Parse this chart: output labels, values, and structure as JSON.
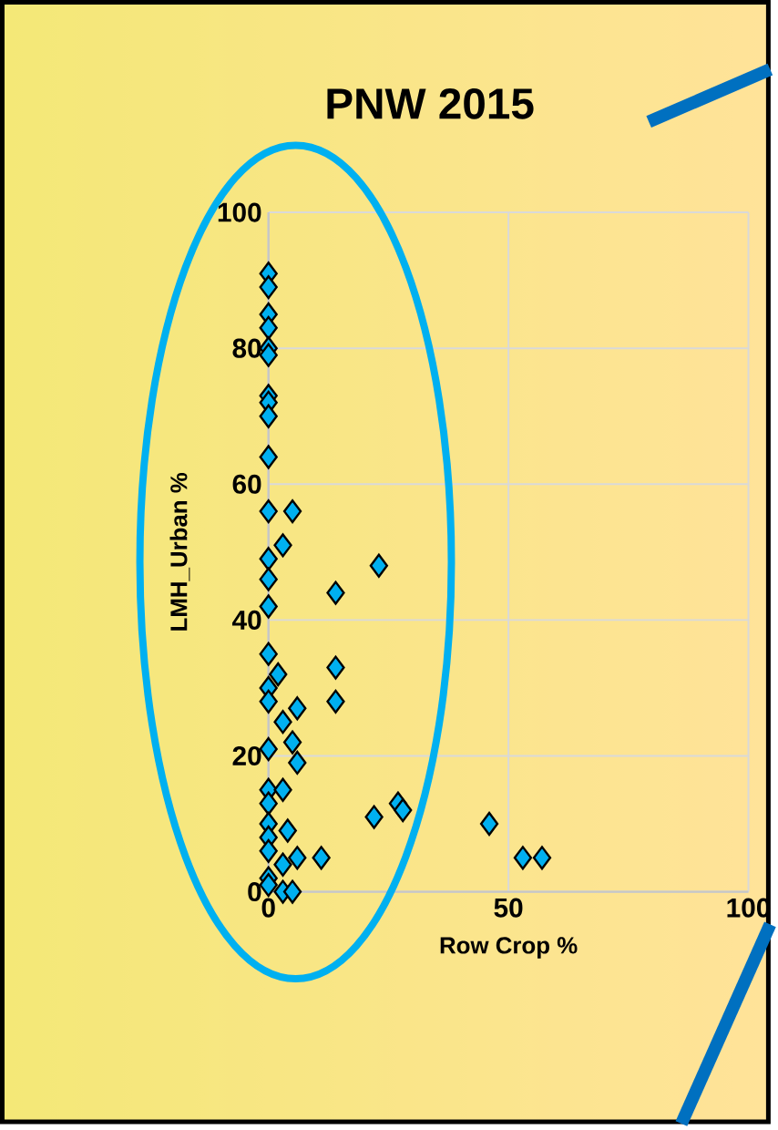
{
  "chart_data": {
    "type": "scatter",
    "title": "PNW 2015",
    "xlabel": "Row Crop %",
    "ylabel": "LMH_Urban %",
    "xlim": [
      0,
      100
    ],
    "xticks": [
      0,
      50,
      100
    ],
    "ylim": [
      0,
      100
    ],
    "yticks": [
      0,
      20,
      40,
      60,
      80,
      100
    ],
    "grid": true,
    "marker": "diamond",
    "series": [
      {
        "color": "#00b0f0",
        "x": [
          0,
          0,
          0,
          0,
          0,
          0,
          0,
          0,
          0,
          0,
          0,
          5,
          3,
          0,
          0,
          0,
          23,
          14,
          0,
          14,
          14,
          2,
          0,
          0,
          6,
          3,
          0,
          5,
          6,
          0,
          3,
          0,
          0,
          4,
          0,
          0,
          6,
          11,
          3,
          0,
          0,
          3,
          5,
          22,
          27,
          28,
          46,
          53,
          57
        ],
        "values": [
          91,
          89,
          85,
          83,
          80,
          79,
          73,
          72,
          70,
          64,
          56,
          56,
          51,
          49,
          46,
          42,
          48,
          44,
          35,
          33,
          28,
          32,
          30,
          28,
          27,
          25,
          21,
          22,
          19,
          15,
          15,
          13,
          10,
          9,
          8,
          6,
          5,
          5,
          4,
          2,
          1,
          0,
          0,
          11,
          13,
          12,
          10,
          5,
          5
        ]
      }
    ]
  }
}
